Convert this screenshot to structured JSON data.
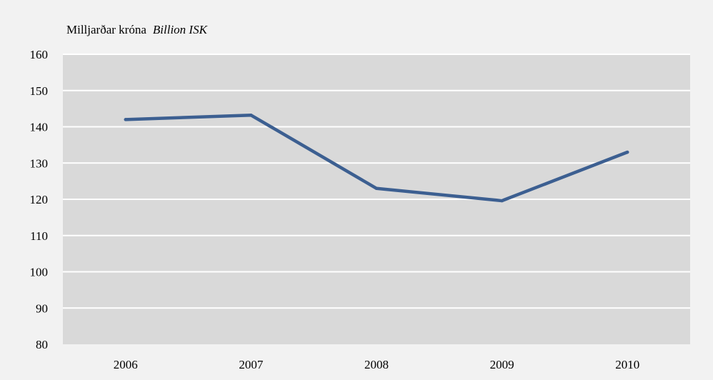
{
  "chart_data": {
    "type": "line",
    "title": "",
    "unit_label_is": "Milljarðar króna",
    "unit_label_en": "Billion ISK",
    "xlabel": "",
    "ylabel": "",
    "categories": [
      "2006",
      "2007",
      "2008",
      "2009",
      "2010"
    ],
    "series": [
      {
        "values": [
          142,
          143.2,
          123,
          119.6,
          133
        ]
      }
    ],
    "ylim": [
      80,
      160
    ],
    "yticks": [
      80,
      90,
      100,
      110,
      120,
      130,
      140,
      150,
      160
    ],
    "grid": true,
    "legend": "none",
    "colors": {
      "background": "#f2f2f2",
      "plot_area": "#d9d9d9",
      "gridline": "#ffffff",
      "line": "#3c5f91",
      "text": "#000000"
    }
  }
}
